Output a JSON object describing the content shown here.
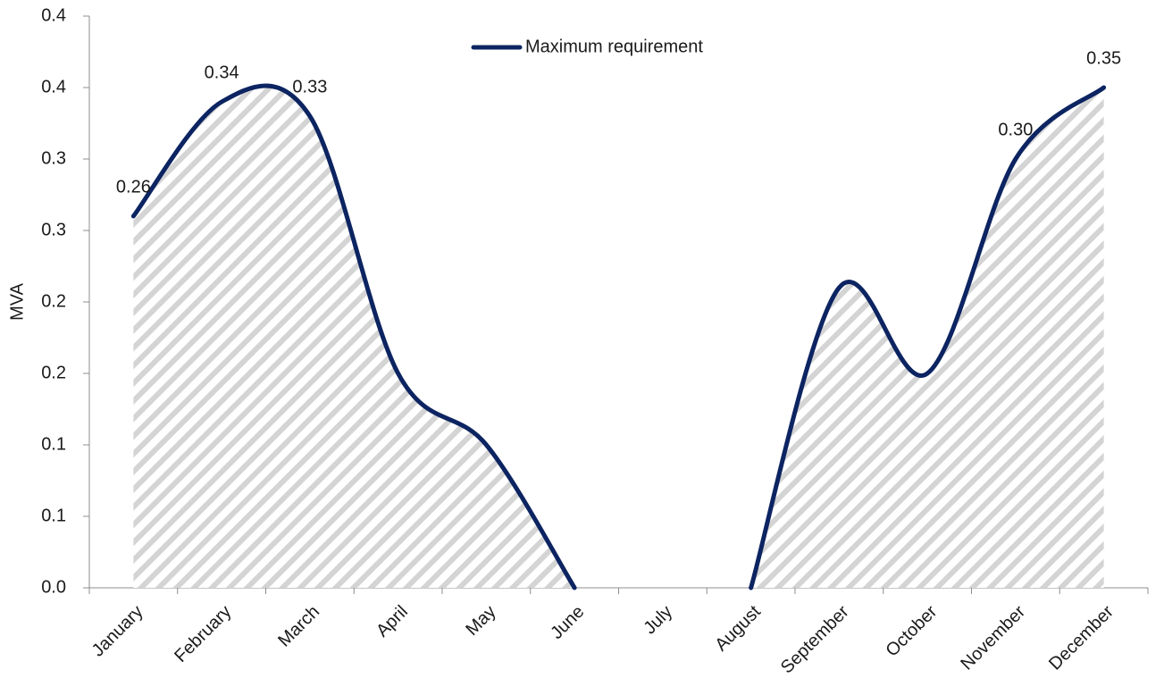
{
  "chart_data": {
    "type": "line",
    "y_label": "MVA",
    "categories": [
      "January",
      "February",
      "March",
      "April",
      "May",
      "June",
      "July",
      "August",
      "September",
      "October",
      "November",
      "December"
    ],
    "series": [
      {
        "name": "Maximum requirement",
        "color": "#0c2461",
        "values": [
          0.26,
          0.34,
          0.33,
          0.15,
          0.1,
          0,
          null,
          0,
          0.21,
          0.15,
          0.3,
          0.35
        ],
        "value_labels": [
          "0.26",
          "0.34",
          "0.33",
          null,
          null,
          null,
          null,
          null,
          null,
          null,
          "0.30",
          "0.35"
        ]
      }
    ],
    "ylim": [
      0,
      0.4
    ],
    "yticks": [
      {
        "value": 0,
        "label": "0.0"
      },
      {
        "value": 0.05,
        "label": "0.1"
      },
      {
        "value": 0.1,
        "label": "0.1"
      },
      {
        "value": 0.15,
        "label": "0.2"
      },
      {
        "value": 0.2,
        "label": "0.2"
      },
      {
        "value": 0.25,
        "label": "0.3"
      },
      {
        "value": 0.3,
        "label": "0.3"
      },
      {
        "value": 0.35,
        "label": "0.4"
      },
      {
        "value": 0.4,
        "label": "0.4"
      }
    ],
    "area_fill": "hatched",
    "legend": "top"
  }
}
